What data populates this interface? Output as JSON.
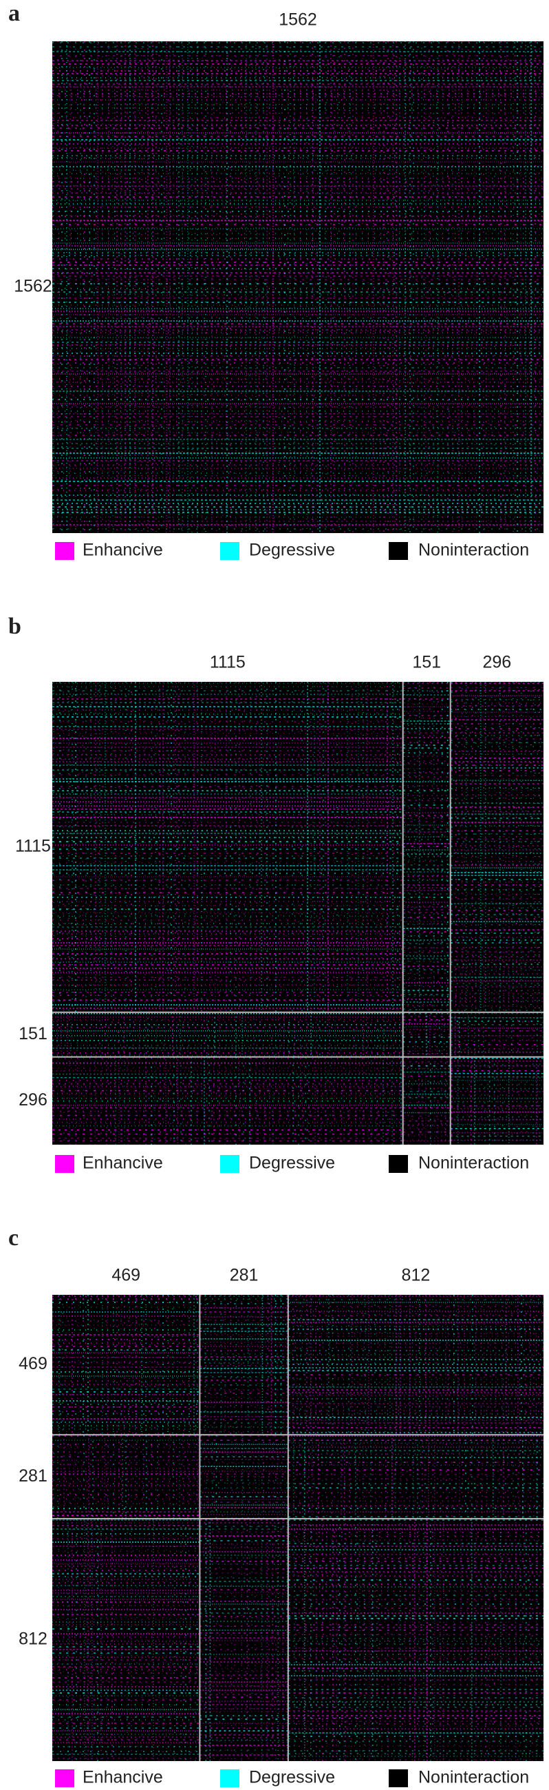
{
  "chart_data": [
    {
      "type": "heatmap",
      "panel": "a",
      "blocks": [
        1562
      ],
      "legend": [
        {
          "name": "Enhancive",
          "color": "#ff00ff"
        },
        {
          "name": "Degressive",
          "color": "#00ffff"
        },
        {
          "name": "Noninteraction",
          "color": "#000000"
        }
      ]
    },
    {
      "type": "heatmap",
      "panel": "b",
      "blocks": [
        1115,
        151,
        296
      ],
      "legend": [
        {
          "name": "Enhancive",
          "color": "#ff00ff"
        },
        {
          "name": "Degressive",
          "color": "#00ffff"
        },
        {
          "name": "Noninteraction",
          "color": "#000000"
        }
      ]
    },
    {
      "type": "heatmap",
      "panel": "c",
      "blocks": [
        469,
        281,
        812
      ],
      "legend": [
        {
          "name": "Enhancive",
          "color": "#ff00ff"
        },
        {
          "name": "Degressive",
          "color": "#00ffff"
        },
        {
          "name": "Noninteraction",
          "color": "#000000"
        }
      ]
    }
  ]
}
